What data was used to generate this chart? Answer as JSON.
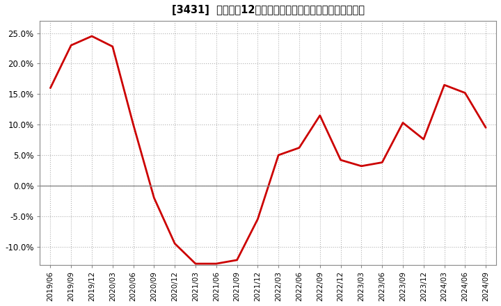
{
  "title": "[3431]  売上高の12か月移動合計の対前年同期増減率の推移",
  "line_color": "#cc0000",
  "background_color": "#ffffff",
  "plot_bg_color": "#ffffff",
  "grid_color": "#aaaaaa",
  "zero_line_color": "#888888",
  "ylim": [
    -0.13,
    0.27
  ],
  "yticks": [
    -0.1,
    -0.05,
    0.0,
    0.05,
    0.1,
    0.15,
    0.2,
    0.25
  ],
  "dates": [
    "2019/06",
    "2019/09",
    "2019/12",
    "2020/03",
    "2020/06",
    "2020/09",
    "2020/12",
    "2021/03",
    "2021/06",
    "2021/09",
    "2021/12",
    "2022/03",
    "2022/06",
    "2022/09",
    "2022/12",
    "2023/03",
    "2023/06",
    "2023/09",
    "2023/12",
    "2024/03",
    "2024/06",
    "2024/09"
  ],
  "values": [
    0.16,
    0.23,
    0.245,
    0.228,
    0.1,
    -0.02,
    -0.095,
    -0.128,
    -0.128,
    -0.122,
    -0.055,
    0.05,
    0.062,
    0.115,
    0.042,
    0.032,
    0.038,
    0.103,
    0.076,
    0.165,
    0.152,
    0.095
  ],
  "line_width": 2.0
}
